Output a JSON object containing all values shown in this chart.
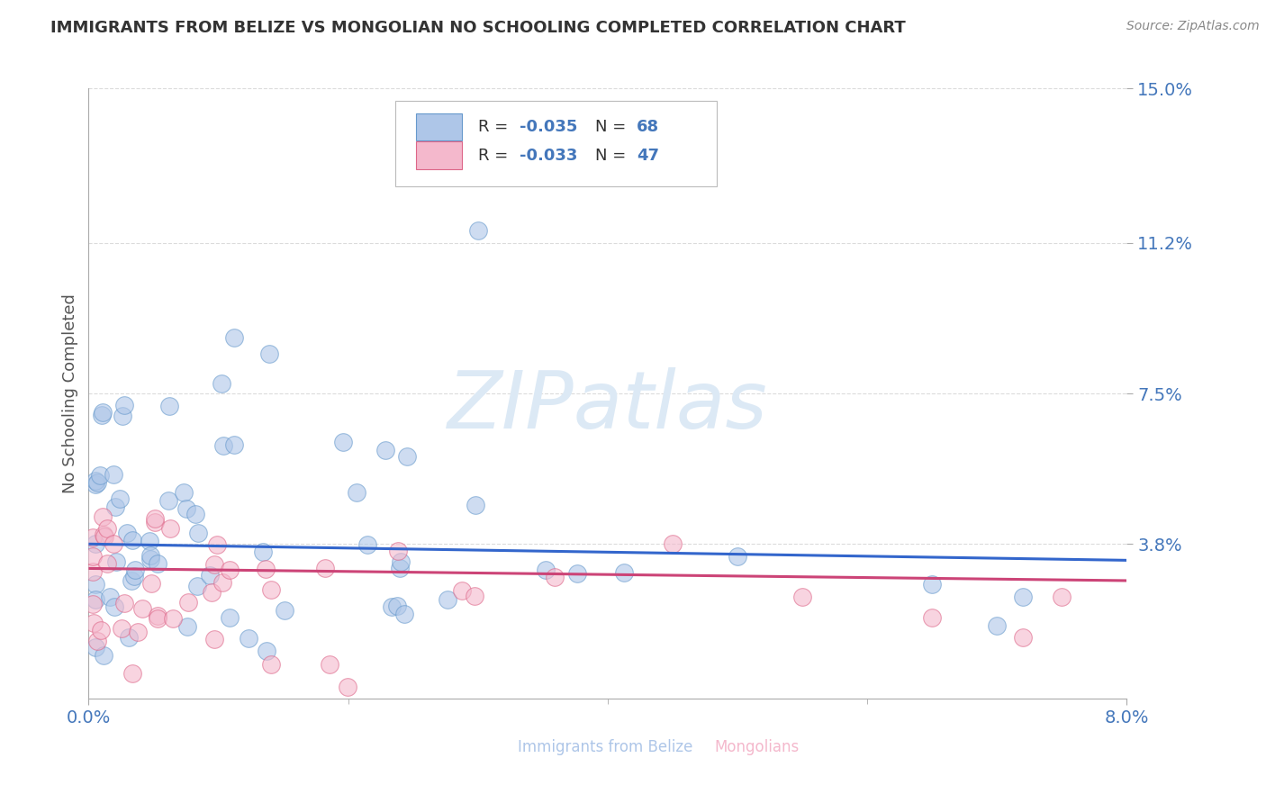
{
  "title": "IMMIGRANTS FROM BELIZE VS MONGOLIAN NO SCHOOLING COMPLETED CORRELATION CHART",
  "source": "Source: ZipAtlas.com",
  "ylabel": "No Schooling Completed",
  "xlim": [
    0.0,
    0.08
  ],
  "ylim": [
    0.0,
    0.15
  ],
  "y_tick_positions": [
    0.038,
    0.075,
    0.112,
    0.15
  ],
  "y_tick_labels": [
    "3.8%",
    "7.5%",
    "11.2%",
    "15.0%"
  ],
  "x_tick_positions": [
    0.0,
    0.08
  ],
  "x_tick_labels": [
    "0.0%",
    "8.0%"
  ],
  "series_blue": {
    "name": "Immigrants from Belize",
    "R": -0.035,
    "N": 68,
    "line_color": "#3366cc",
    "fill_color": "#aec6e8",
    "edge_color": "#6699cc"
  },
  "series_pink": {
    "name": "Mongolians",
    "R": -0.033,
    "N": 47,
    "line_color": "#cc4477",
    "fill_color": "#f4b8cc",
    "edge_color": "#dd6688"
  },
  "watermark": "ZIPatlas",
  "watermark_color": "#dce9f5",
  "background_color": "#ffffff",
  "grid_color": "#cccccc",
  "title_color": "#333333",
  "axis_label_color": "#555555",
  "tick_label_color": "#4477bb",
  "source_color": "#888888",
  "legend_text_color": "#333333",
  "legend_value_color": "#4477bb"
}
